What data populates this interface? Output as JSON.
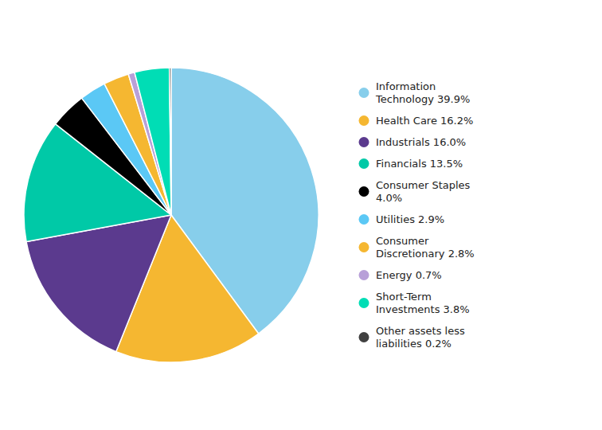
{
  "chart_data": {
    "type": "pie",
    "categories": [
      "Information\nTechnology 39.9%",
      "Health Care 16.2%",
      "Industrials 16.0%",
      "Financials 13.5%",
      "Consumer Staples\n4.0%",
      "Utilities 2.9%",
      "Consumer\nDiscretionary 2.8%",
      "Energy 0.7%",
      "Short-Term\nInvestments 3.8%",
      "Other assets less\nliabilities 0.2%"
    ],
    "values": [
      39.9,
      16.2,
      16.0,
      13.5,
      4.0,
      2.9,
      2.8,
      0.7,
      3.8,
      0.2
    ],
    "colors": [
      "#87CEEB",
      "#F5B731",
      "#5B3A8E",
      "#00C9A7",
      "#000000",
      "#5BC8F5",
      "#F5B731",
      "#B8A0D8",
      "#00DDB5",
      "#404040"
    ],
    "legend": "right"
  }
}
